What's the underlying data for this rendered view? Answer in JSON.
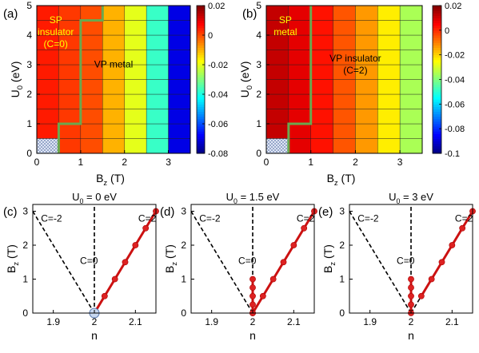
{
  "chart_data": [
    {
      "type": "heatmap",
      "panel": "(a)",
      "xlabel_main": "B",
      "xlabel_sub": "z",
      "xlabel_unit": "(T)",
      "ylabel_main": "U",
      "ylabel_sub": "0",
      "ylabel_unit": "(eV)",
      "xlim": [
        0,
        3.5
      ],
      "ylim": [
        0,
        5
      ],
      "x_ticks": [
        "0",
        "1",
        "2",
        "3"
      ],
      "y_ticks": [
        "0",
        "1",
        "2",
        "3",
        "4",
        "5"
      ],
      "x_centers": [
        0.25,
        0.75,
        1.25,
        1.75,
        2.25,
        2.75,
        3.25
      ],
      "y_centers": [
        0.25,
        0.75,
        1.25,
        1.75,
        2.25,
        2.75,
        3.25,
        3.75,
        4.25,
        4.75
      ],
      "column_values": [
        0.005,
        0.002,
        0.0,
        -0.01,
        -0.02,
        -0.037,
        -0.07
      ],
      "colorbar": {
        "min": -0.08,
        "max": 0.02,
        "ticks": [
          "0.02",
          "0",
          "-0.02",
          "-0.04",
          "-0.06",
          "-0.08"
        ]
      },
      "boundary": [
        [
          0.5,
          0
        ],
        [
          0.5,
          1
        ],
        [
          1,
          1
        ],
        [
          1,
          4.5
        ],
        [
          1.5,
          4.5
        ],
        [
          1.5,
          5
        ]
      ],
      "annotations": [
        {
          "lines": [
            "SP",
            "insulator",
            "(C=0)"
          ],
          "x": 0.25,
          "y": 4.0,
          "color": "#ffff00"
        },
        {
          "lines": [
            "VP metal"
          ],
          "x": 1.75,
          "y": 2.9,
          "color": "#000000"
        }
      ]
    },
    {
      "type": "heatmap",
      "panel": "(b)",
      "xlabel_main": "B",
      "xlabel_sub": "z",
      "xlabel_unit": "(T)",
      "ylabel_main": "U",
      "ylabel_sub": "0",
      "ylabel_unit": "(eV)",
      "xlim": [
        0,
        3.5
      ],
      "ylim": [
        0,
        5
      ],
      "x_ticks": [
        "0",
        "1",
        "2",
        "3"
      ],
      "y_ticks": [
        "0",
        "1",
        "2",
        "3",
        "4",
        "5"
      ],
      "x_centers": [
        0.25,
        0.75,
        1.25,
        1.75,
        2.25,
        2.75,
        3.25
      ],
      "y_centers": [
        0.25,
        0.75,
        1.25,
        1.75,
        2.25,
        2.75,
        3.25,
        3.75,
        4.25,
        4.75
      ],
      "column_values": [
        0.012,
        0.008,
        0.003,
        -0.005,
        -0.013,
        -0.023,
        -0.035
      ],
      "colorbar": {
        "min": -0.1,
        "max": 0.02,
        "ticks": [
          "0.02",
          "0",
          "-0.02",
          "-0.04",
          "-0.06",
          "-0.08",
          "-0.1"
        ]
      },
      "boundary": [
        [
          0.5,
          0
        ],
        [
          0.5,
          1
        ],
        [
          1,
          1
        ],
        [
          1,
          5
        ]
      ],
      "annotations": [
        {
          "lines": [
            "SP",
            "metal"
          ],
          "x": 0.25,
          "y": 4.2,
          "color": "#ffff00"
        },
        {
          "lines": [
            "VP insulator",
            "(C=2)"
          ],
          "x": 2.0,
          "y": 2.9,
          "color": "#000000"
        }
      ]
    },
    {
      "type": "line",
      "panel": "(c)",
      "title_main": "U",
      "title_sub": "0",
      "title_rest": " = 0 eV",
      "xlabel": "n",
      "ylabel_main": "B",
      "ylabel_sub": "z",
      "ylabel_unit": "(T)",
      "xlim": [
        1.85,
        2.15
      ],
      "ylim": [
        0,
        3.2
      ],
      "x_ticks": [
        1.9,
        2.0,
        2.1
      ],
      "x_tick_labels": [
        "1.9",
        "2",
        "2.1"
      ],
      "y_ticks": [
        0,
        1,
        2,
        3
      ],
      "y_tick_labels": [
        "0",
        "1",
        "2",
        "3"
      ],
      "reference_lines": [
        {
          "label": "C=-2",
          "x": [
            2.0,
            1.85
          ],
          "y": [
            0,
            3.0
          ]
        },
        {
          "label": "C=0",
          "x": [
            2.0,
            2.0
          ],
          "y": [
            0,
            3.2
          ]
        },
        {
          "label": "C=2",
          "x": [
            2.0,
            2.15
          ],
          "y": [
            0,
            3.0
          ]
        }
      ],
      "labels": [
        {
          "text": "C=-2",
          "x": 1.87,
          "y": 2.7
        },
        {
          "text": "C=2",
          "x": 2.107,
          "y": 2.7
        },
        {
          "text": "C=0",
          "x": 1.965,
          "y": 1.45
        }
      ],
      "series": [
        {
          "x": [
            2.0,
            2.025,
            2.05,
            2.075,
            2.1,
            2.125,
            2.15
          ],
          "y": [
            0.0,
            0.5,
            1.0,
            1.5,
            2.0,
            2.5,
            3.0
          ]
        }
      ],
      "open_markers": [
        {
          "x": 2.0,
          "y": 0.0
        }
      ]
    },
    {
      "type": "line",
      "panel": "(d)",
      "title_main": "U",
      "title_sub": "0",
      "title_rest": " = 1.5 eV",
      "xlabel": "n",
      "ylabel_main": "B",
      "ylabel_sub": "z",
      "ylabel_unit": "(T)",
      "xlim": [
        1.85,
        2.15
      ],
      "ylim": [
        0,
        3.2
      ],
      "x_ticks": [
        1.9,
        2.0,
        2.1
      ],
      "x_tick_labels": [
        "1.9",
        "2",
        "2.1"
      ],
      "y_ticks": [
        0,
        1,
        2,
        3
      ],
      "y_tick_labels": [
        "0",
        "1",
        "2",
        "3"
      ],
      "reference_lines": [
        {
          "label": "C=-2",
          "x": [
            2.0,
            1.85
          ],
          "y": [
            0,
            3.0
          ]
        },
        {
          "label": "C=0",
          "x": [
            2.0,
            2.0
          ],
          "y": [
            0,
            3.2
          ]
        },
        {
          "label": "C=2",
          "x": [
            2.0,
            2.15
          ],
          "y": [
            0,
            3.0
          ]
        }
      ],
      "labels": [
        {
          "text": "C=-2",
          "x": 1.87,
          "y": 2.7
        },
        {
          "text": "C=2",
          "x": 2.107,
          "y": 2.7
        },
        {
          "text": "C=0",
          "x": 1.965,
          "y": 1.45
        }
      ],
      "series": [
        {
          "x": [
            2.0,
            2.0,
            2.0,
            2.0,
            2.0
          ],
          "y": [
            0.0,
            0.25,
            0.5,
            0.75,
            1.0
          ]
        },
        {
          "x": [
            2.0,
            2.025,
            2.05,
            2.075,
            2.1,
            2.125,
            2.15
          ],
          "y": [
            0.0,
            0.5,
            1.0,
            1.5,
            2.0,
            2.5,
            3.0
          ]
        }
      ],
      "open_markers": []
    },
    {
      "type": "line",
      "panel": "(e)",
      "title_main": "U",
      "title_sub": "0",
      "title_rest": " = 3 eV",
      "xlabel": "n",
      "ylabel_main": "B",
      "ylabel_sub": "z",
      "ylabel_unit": "(T)",
      "xlim": [
        1.85,
        2.15
      ],
      "ylim": [
        0,
        3.2
      ],
      "x_ticks": [
        1.9,
        2.0,
        2.1
      ],
      "x_tick_labels": [
        "1.9",
        "2",
        "2.1"
      ],
      "y_ticks": [
        0,
        1,
        2,
        3
      ],
      "y_tick_labels": [
        "0",
        "1",
        "2",
        "3"
      ],
      "reference_lines": [
        {
          "label": "C=-2",
          "x": [
            2.0,
            1.85
          ],
          "y": [
            0,
            3.0
          ]
        },
        {
          "label": "C=0",
          "x": [
            2.0,
            2.0
          ],
          "y": [
            0,
            3.2
          ]
        },
        {
          "label": "C=2",
          "x": [
            2.0,
            2.15
          ],
          "y": [
            0,
            3.0
          ]
        }
      ],
      "labels": [
        {
          "text": "C=-2",
          "x": 1.87,
          "y": 2.7
        },
        {
          "text": "C=2",
          "x": 2.107,
          "y": 2.7
        },
        {
          "text": "C=0",
          "x": 1.965,
          "y": 1.45
        }
      ],
      "series": [
        {
          "x": [
            2.0,
            2.0,
            2.0,
            2.0,
            2.0
          ],
          "y": [
            0.0,
            0.25,
            0.5,
            0.75,
            1.0
          ]
        },
        {
          "x": [
            2.025,
            2.05,
            2.075,
            2.1,
            2.125,
            2.15
          ],
          "y": [
            0.5,
            1.0,
            1.5,
            2.0,
            2.5,
            3.0
          ]
        }
      ],
      "open_markers": []
    }
  ],
  "colors": {
    "boundary": "#6aa84f",
    "series": "#cc1111",
    "marker": "#dd2222",
    "open_marker_fill": "#c8d8f0",
    "open_marker_stroke": "#5a7ab0",
    "frame": "#000000",
    "reference": "#000000"
  }
}
